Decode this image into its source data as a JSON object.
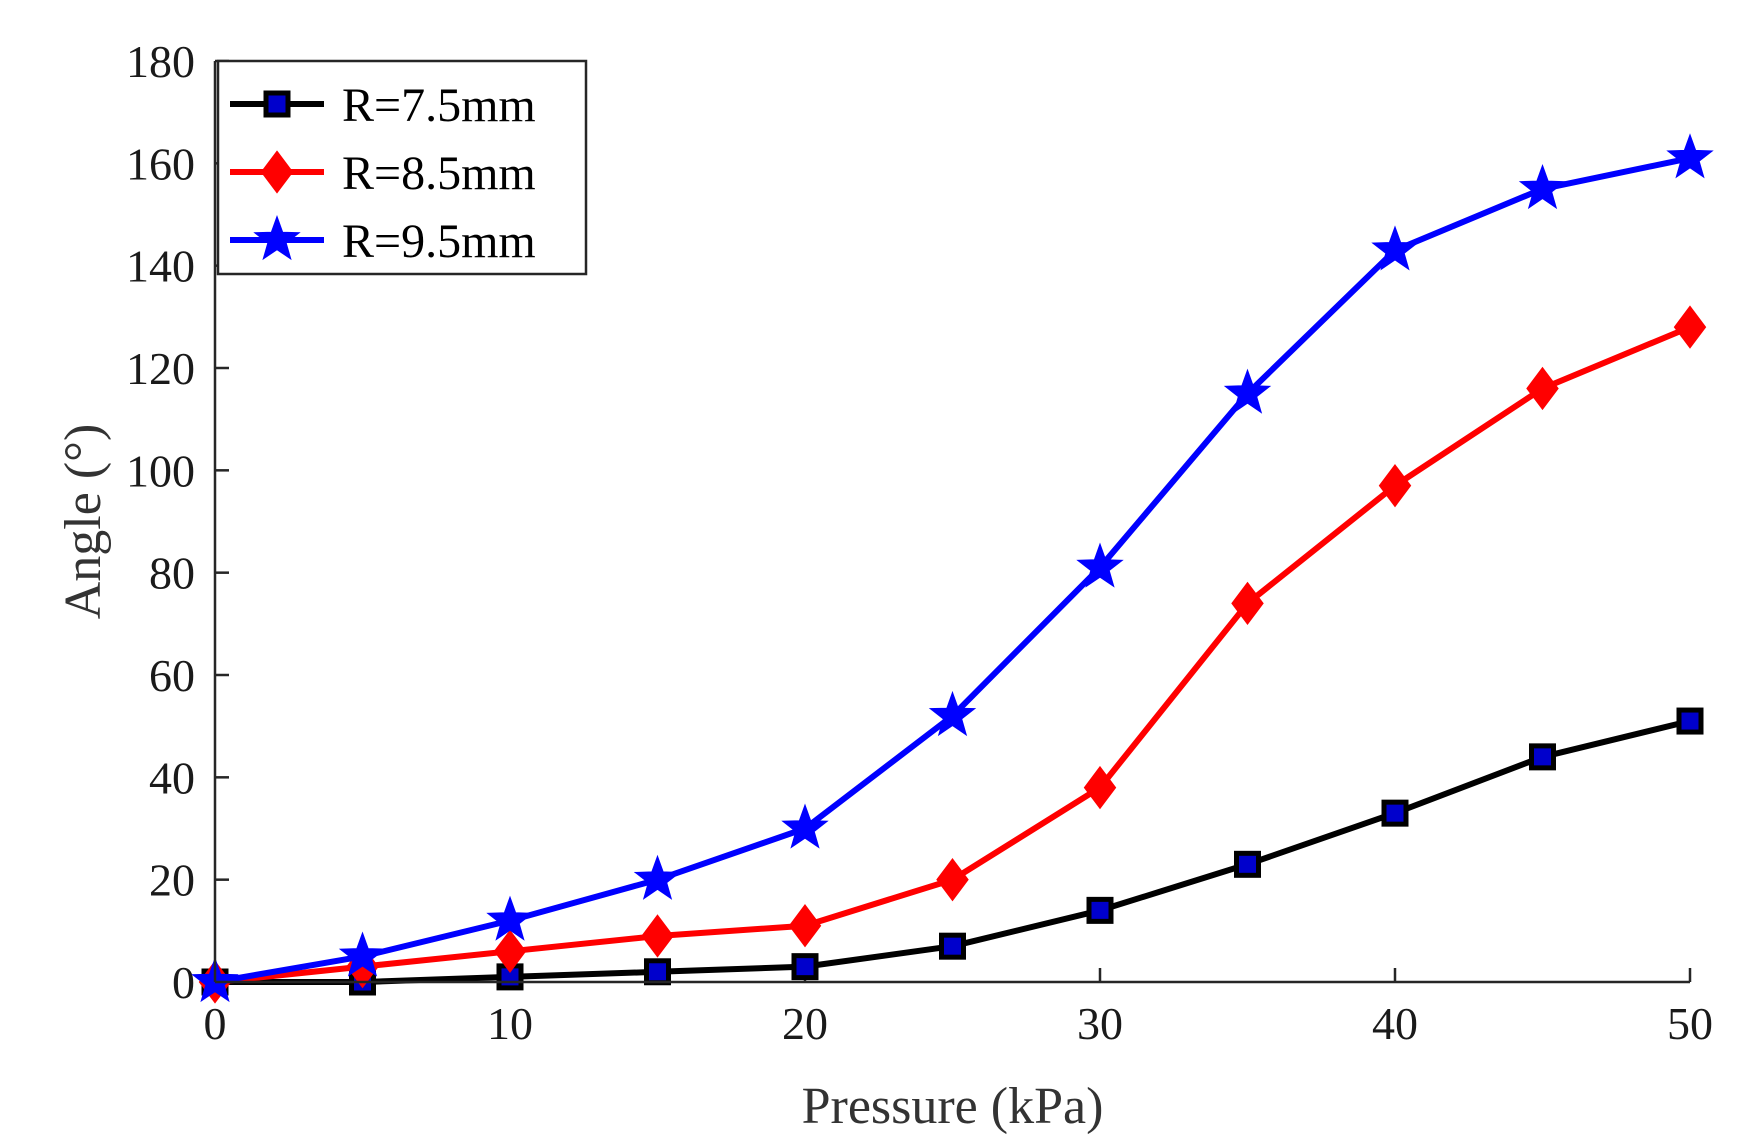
{
  "chart_data": {
    "type": "line",
    "title": "",
    "xlabel": "Pressure (kPa)",
    "ylabel": "Angle (°)",
    "xlim": [
      0,
      50
    ],
    "ylim": [
      0,
      180
    ],
    "xticks": [
      0,
      10,
      20,
      30,
      40,
      50
    ],
    "xtick_labels": [
      "0",
      "10",
      "20",
      "30",
      "40",
      "50"
    ],
    "yticks": [
      0,
      20,
      40,
      60,
      80,
      100,
      120,
      140,
      160,
      180
    ],
    "ytick_labels": [
      "0",
      "20",
      "40",
      "60",
      "80",
      "100",
      "120",
      "140",
      "160",
      "180"
    ],
    "grid": false,
    "legend_position": "top-left",
    "x": [
      0,
      5,
      10,
      15,
      20,
      25,
      30,
      35,
      40,
      45,
      50
    ],
    "series": [
      {
        "name": "R=7.5mm",
        "color": "#000000",
        "marker": "square",
        "values": [
          0,
          0,
          1,
          2,
          3,
          7,
          14,
          23,
          33,
          44,
          51
        ]
      },
      {
        "name": "R=8.5mm",
        "color": "#ff0000",
        "marker": "diamond",
        "values": [
          0,
          3,
          6,
          9,
          11,
          20,
          38,
          74,
          97,
          116,
          128
        ]
      },
      {
        "name": "R=9.5mm",
        "color": "#0000ff",
        "marker": "star",
        "values": [
          0,
          5,
          12,
          20,
          30,
          52,
          81,
          115,
          143,
          155,
          161
        ]
      }
    ]
  }
}
